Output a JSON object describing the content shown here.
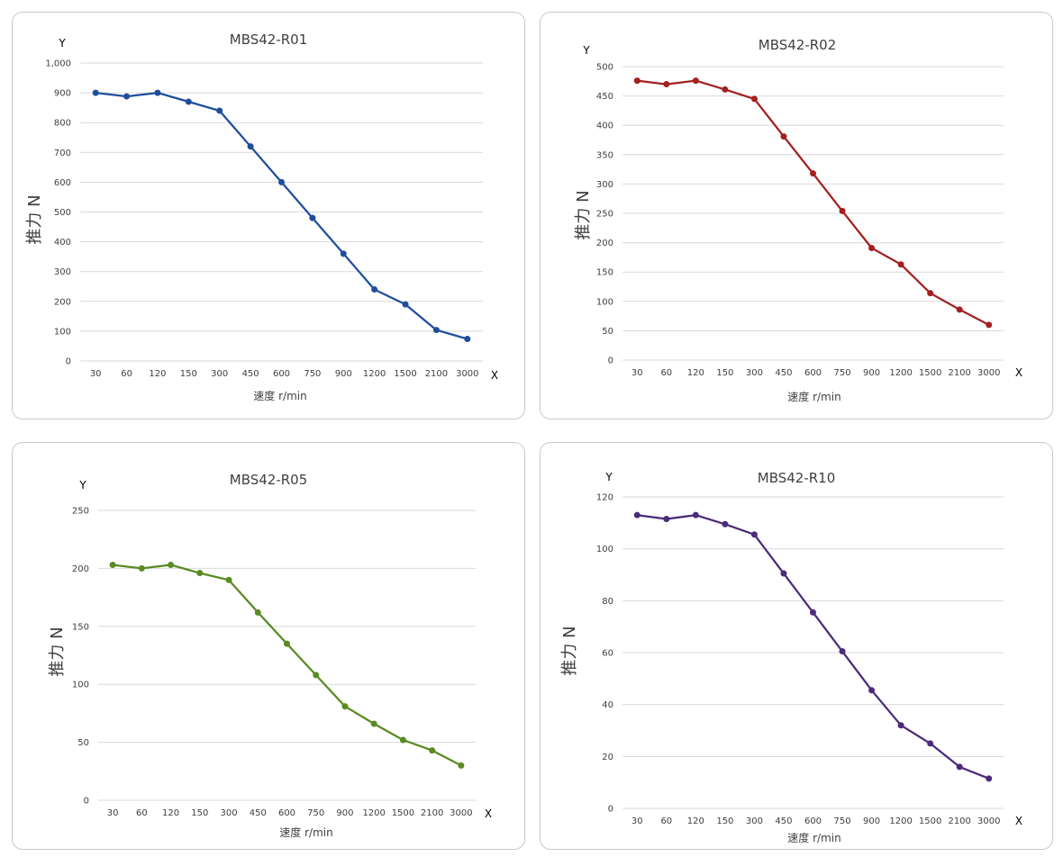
{
  "chart_data": [
    {
      "type": "line",
      "title": "MBS42-R01",
      "xlabel": "速度 r/min",
      "ylabel": "推力 N",
      "x_axis_letter": "X",
      "y_axis_letter": "Y",
      "categories": [
        "30",
        "60",
        "120",
        "150",
        "300",
        "450",
        "600",
        "750",
        "900",
        "1200",
        "1500",
        "2100",
        "3000"
      ],
      "series": [
        {
          "values": [
            900,
            888,
            900,
            870,
            840,
            720,
            600,
            480,
            360,
            240,
            190,
            104,
            74
          ]
        }
      ],
      "ylim": [
        0,
        1000
      ],
      "yticks": [
        0,
        100,
        200,
        300,
        400,
        500,
        600,
        700,
        800,
        900,
        1000
      ],
      "ytick_labels": [
        "0",
        "100",
        "200",
        "300",
        "400",
        "500",
        "600",
        "700",
        "800",
        "900",
        "1,000"
      ],
      "color": "#1f4e9c",
      "grid": true
    },
    {
      "type": "line",
      "title": "MBS42-R02",
      "xlabel": "速度 r/min",
      "ylabel": "推力 N",
      "x_axis_letter": "X",
      "y_axis_letter": "Y",
      "categories": [
        "30",
        "60",
        "120",
        "150",
        "300",
        "450",
        "600",
        "750",
        "900",
        "1200",
        "1500",
        "2100",
        "3000"
      ],
      "series": [
        {
          "values": [
            476,
            470,
            476,
            461,
            445,
            381,
            318,
            254,
            191,
            163,
            114,
            86,
            60
          ]
        }
      ],
      "ylim": [
        0,
        500
      ],
      "yticks": [
        0,
        50,
        100,
        150,
        200,
        250,
        300,
        350,
        400,
        450,
        500
      ],
      "ytick_labels": [
        "0",
        "50",
        "100",
        "150",
        "200",
        "250",
        "300",
        "350",
        "400",
        "450",
        "500"
      ],
      "color": "#a32020",
      "grid": true
    },
    {
      "type": "line",
      "title": "MBS42-R05",
      "xlabel": "速度 r/min",
      "ylabel": "推力 N",
      "x_axis_letter": "X",
      "y_axis_letter": "Y",
      "categories": [
        "30",
        "60",
        "120",
        "150",
        "300",
        "450",
        "600",
        "750",
        "900",
        "1200",
        "1500",
        "2100",
        "3000"
      ],
      "series": [
        {
          "values": [
            203,
            200,
            203,
            196,
            190,
            162,
            135,
            108,
            81,
            66,
            52,
            43,
            30
          ]
        }
      ],
      "ylim": [
        0,
        250
      ],
      "yticks": [
        0,
        50,
        100,
        150,
        200,
        250
      ],
      "ytick_labels": [
        "0",
        "50",
        "100",
        "150",
        "200",
        "250"
      ],
      "color": "#5a8a22",
      "grid": true
    },
    {
      "type": "line",
      "title": "MBS42-R10",
      "xlabel": "速度 r/min",
      "ylabel": "推力 N",
      "x_axis_letter": "X",
      "y_axis_letter": "Y",
      "categories": [
        "30",
        "60",
        "120",
        "150",
        "300",
        "450",
        "600",
        "750",
        "900",
        "1200",
        "1500",
        "2100",
        "3000"
      ],
      "series": [
        {
          "values": [
            113,
            111.5,
            113,
            109.5,
            105.5,
            90.5,
            75.5,
            60.5,
            45.5,
            32,
            25,
            16,
            11.5
          ]
        }
      ],
      "ylim": [
        0,
        120
      ],
      "yticks": [
        0,
        20,
        40,
        60,
        80,
        100,
        120
      ],
      "ytick_labels": [
        "0",
        "20",
        "40",
        "60",
        "80",
        "100",
        "120"
      ],
      "color": "#4b2b7a",
      "grid": true
    }
  ]
}
